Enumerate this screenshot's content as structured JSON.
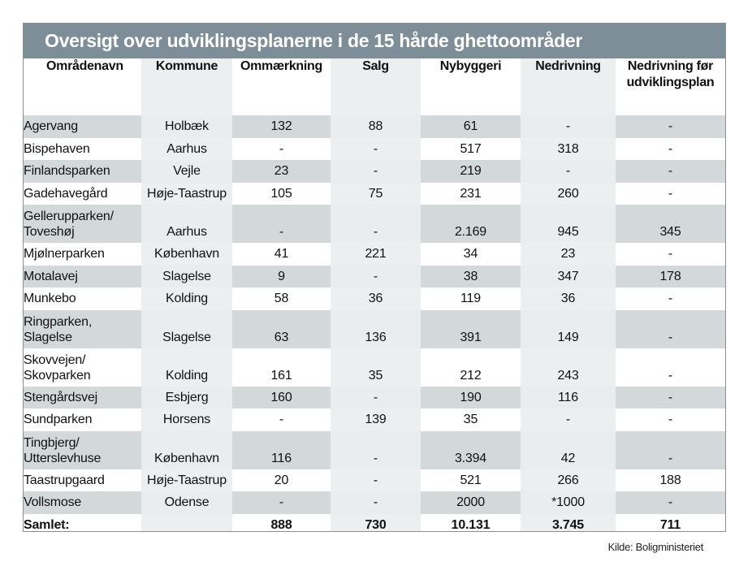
{
  "title": "Oversigt over udviklingsplanerne i de 15 hårde ghettoområder",
  "headers": [
    "Områdenavn",
    "Kommune",
    "Ommærkning",
    "Salg",
    "Nybyggeri",
    "Nedrivning",
    "Nedrivning før udviklingsplan"
  ],
  "rows": [
    {
      "name": "Agervang",
      "kommune": "Holbæk",
      "ommaerkning": "132",
      "salg": "88",
      "nybyggeri": "61",
      "nedrivning": "-",
      "nedrivning_foer": "-"
    },
    {
      "name": "Bispehaven",
      "kommune": "Aarhus",
      "ommaerkning": "-",
      "salg": "-",
      "nybyggeri": "517",
      "nedrivning": "318",
      "nedrivning_foer": "-"
    },
    {
      "name": "Finlandsparken",
      "kommune": "Vejle",
      "ommaerkning": "23",
      "salg": "-",
      "nybyggeri": "219",
      "nedrivning": "-",
      "nedrivning_foer": "-"
    },
    {
      "name": "Gadehavegård",
      "kommune": "Høje-Taastrup",
      "ommaerkning": "105",
      "salg": "75",
      "nybyggeri": "231",
      "nedrivning": "260",
      "nedrivning_foer": "-"
    },
    {
      "name": "Gellerupparken/ Toveshøj",
      "kommune": "Aarhus",
      "ommaerkning": "-",
      "salg": "-",
      "nybyggeri": "2.169",
      "nedrivning": "945",
      "nedrivning_foer": "345"
    },
    {
      "name": "Mjølnerparken",
      "kommune": "København",
      "ommaerkning": "41",
      "salg": "221",
      "nybyggeri": "34",
      "nedrivning": "23",
      "nedrivning_foer": "-"
    },
    {
      "name": "Motalavej",
      "kommune": "Slagelse",
      "ommaerkning": "9",
      "salg": "-",
      "nybyggeri": "38",
      "nedrivning": "347",
      "nedrivning_foer": "178"
    },
    {
      "name": "Munkebo",
      "kommune": "Kolding",
      "ommaerkning": "58",
      "salg": "36",
      "nybyggeri": "119",
      "nedrivning": "36",
      "nedrivning_foer": "-"
    },
    {
      "name": "Ringparken, Slagelse",
      "kommune": "Slagelse",
      "ommaerkning": "63",
      "salg": "136",
      "nybyggeri": "391",
      "nedrivning": "149",
      "nedrivning_foer": "-"
    },
    {
      "name": "Skovvejen/ Skovparken",
      "kommune": "Kolding",
      "ommaerkning": "161",
      "salg": "35",
      "nybyggeri": "212",
      "nedrivning": "243",
      "nedrivning_foer": "-"
    },
    {
      "name": "Stengårdsvej",
      "kommune": "Esbjerg",
      "ommaerkning": "160",
      "salg": "-",
      "nybyggeri": "190",
      "nedrivning": "116",
      "nedrivning_foer": "-"
    },
    {
      "name": "Sundparken",
      "kommune": "Horsens",
      "ommaerkning": "-",
      "salg": "139",
      "nybyggeri": "35",
      "nedrivning": "-",
      "nedrivning_foer": "-"
    },
    {
      "name": "Tingbjerg/ Utterslevhuse",
      "kommune": "København",
      "ommaerkning": "116",
      "salg": "-",
      "nybyggeri": "3.394",
      "nedrivning": "42",
      "nedrivning_foer": "-"
    },
    {
      "name": "Taastrupgaard",
      "kommune": "Høje-Taastrup",
      "ommaerkning": "20",
      "salg": "-",
      "nybyggeri": "521",
      "nedrivning": "266",
      "nedrivning_foer": "188"
    },
    {
      "name": "Vollsmose",
      "kommune": "Odense",
      "ommaerkning": "-",
      "salg": "-",
      "nybyggeri": "2000",
      "nedrivning": "*1000",
      "nedrivning_foer": "-"
    }
  ],
  "total": {
    "label": "Samlet:",
    "kommune": "",
    "ommaerkning": "888",
    "salg": "730",
    "nybyggeri": "10.131",
    "nedrivning": "3.745",
    "nedrivning_foer": "711"
  },
  "source": "Kilde: Boligministeriet",
  "colors": {
    "title_bar": "#7e8e99",
    "row_stripe": "#d3d8db",
    "alt_column": "#eceeef"
  }
}
